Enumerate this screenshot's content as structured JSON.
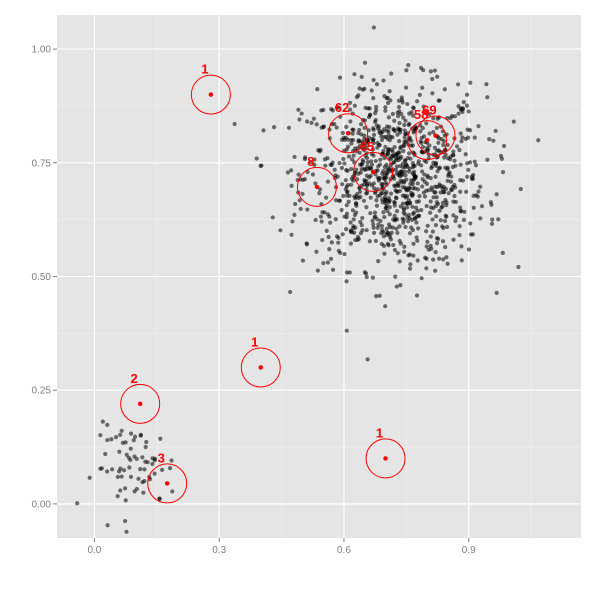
{
  "chart_data": {
    "type": "scatter",
    "title": "",
    "xlabel": "",
    "ylabel": "",
    "xlim": [
      -0.09,
      1.17
    ],
    "ylim": [
      -0.075,
      1.075
    ],
    "x_ticks": [
      0.0,
      0.3,
      0.6,
      0.9
    ],
    "x_tick_labels": [
      "0.0",
      "0.3",
      "0.6",
      "0.9"
    ],
    "y_ticks": [
      0.0,
      0.25,
      0.5,
      0.75,
      1.0
    ],
    "y_tick_labels": [
      "0.00",
      "0.25",
      "0.50",
      "0.75",
      "1.00"
    ],
    "grid": true,
    "colors": {
      "panel": "#e5e5e5",
      "grid_major": "#ffffff",
      "grid_minor": "#f2f2f2",
      "points": "#000000",
      "clusters": "#ff0000"
    },
    "point_groups": [
      {
        "center_x": 0.72,
        "center_y": 0.72,
        "spread_x": 0.11,
        "spread_y": 0.1,
        "count": 1000
      },
      {
        "center_x": 0.1,
        "center_y": 0.08,
        "spread_x": 0.05,
        "spread_y": 0.045,
        "count": 70
      }
    ],
    "single_points": [
      {
        "x": 0.28,
        "y": 0.9
      },
      {
        "x": 0.4,
        "y": 0.3
      },
      {
        "x": 0.7,
        "y": 0.1
      },
      {
        "x": 0.11,
        "y": 0.22
      },
      {
        "x": 0.175,
        "y": 0.045
      }
    ],
    "clusters": [
      {
        "label": "1",
        "x": 0.28,
        "y": 0.9
      },
      {
        "label": "1",
        "x": 0.4,
        "y": 0.3
      },
      {
        "label": "1",
        "x": 0.7,
        "y": 0.1
      },
      {
        "label": "2",
        "x": 0.11,
        "y": 0.22
      },
      {
        "label": "3",
        "x": 0.175,
        "y": 0.045
      },
      {
        "label": "8",
        "x": 0.535,
        "y": 0.697
      },
      {
        "label": "62",
        "x": 0.61,
        "y": 0.815
      },
      {
        "label": "65",
        "x": 0.67,
        "y": 0.73
      },
      {
        "label": "58",
        "x": 0.8,
        "y": 0.8
      },
      {
        "label": "69",
        "x": 0.82,
        "y": 0.81
      }
    ]
  }
}
